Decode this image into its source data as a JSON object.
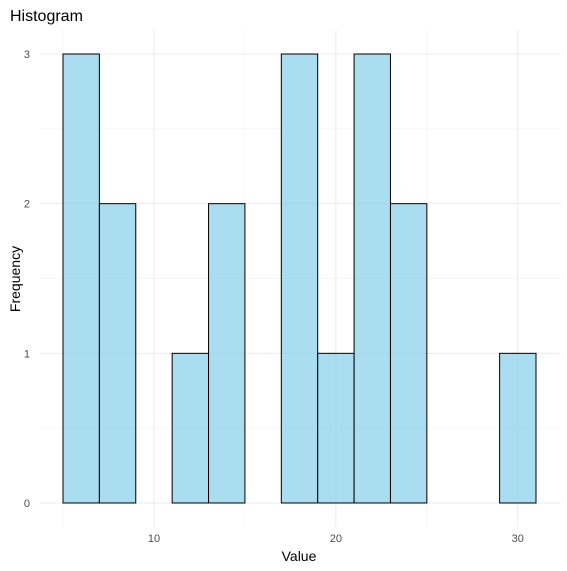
{
  "chart_data": {
    "type": "bar",
    "title": "Histogram",
    "xlabel": "Value",
    "ylabel": "Frequency",
    "bin_width": 2,
    "bins": [
      {
        "start": 5,
        "end": 7,
        "count": 3
      },
      {
        "start": 7,
        "end": 9,
        "count": 2
      },
      {
        "start": 9,
        "end": 11,
        "count": 0
      },
      {
        "start": 11,
        "end": 13,
        "count": 1
      },
      {
        "start": 13,
        "end": 15,
        "count": 2
      },
      {
        "start": 15,
        "end": 17,
        "count": 0
      },
      {
        "start": 17,
        "end": 19,
        "count": 3
      },
      {
        "start": 19,
        "end": 21,
        "count": 1
      },
      {
        "start": 21,
        "end": 23,
        "count": 3
      },
      {
        "start": 23,
        "end": 25,
        "count": 2
      },
      {
        "start": 25,
        "end": 27,
        "count": 0
      },
      {
        "start": 27,
        "end": 29,
        "count": 0
      },
      {
        "start": 29,
        "end": 31,
        "count": 1
      }
    ],
    "xlim": [
      4,
      32
    ],
    "ylim": [
      0,
      3
    ],
    "x_ticks": [
      "10",
      "20",
      "30"
    ],
    "y_ticks": [
      "0",
      "1",
      "2",
      "3"
    ],
    "grid": true,
    "colors": {
      "fill": "#87CEEB",
      "fill_opacity": 0.7,
      "outline": "#000000"
    }
  }
}
